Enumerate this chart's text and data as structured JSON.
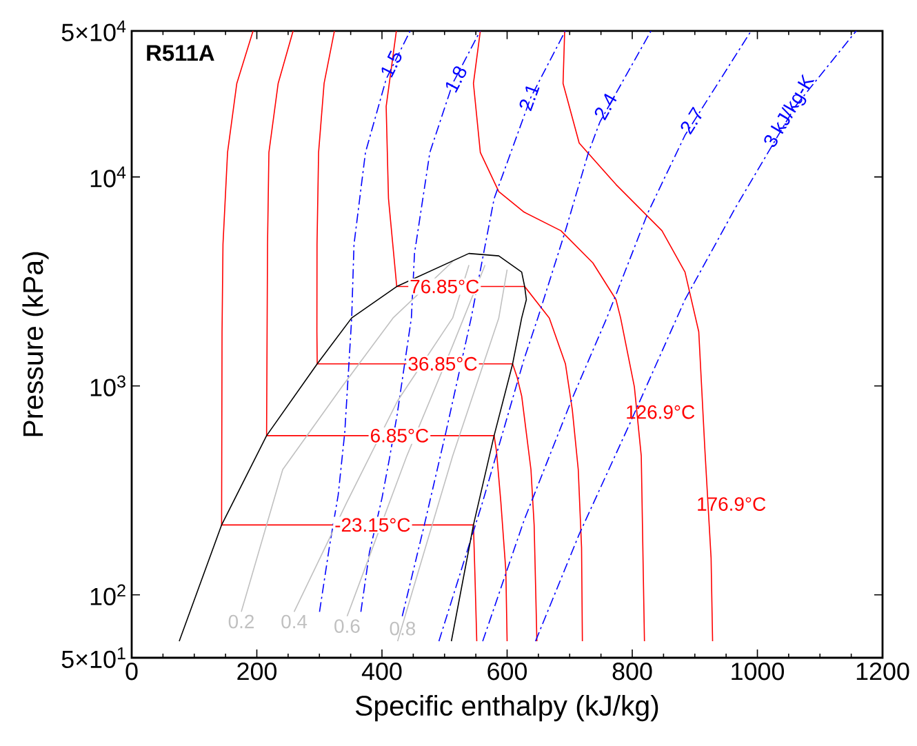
{
  "chart_data": {
    "type": "line",
    "title": "R511A",
    "xlabel": "Specific enthalpy (kJ/kg)",
    "ylabel": "Pressure (kPa)",
    "xlim": [
      0,
      1200
    ],
    "xticks": [
      0,
      200,
      400,
      600,
      800,
      1000,
      1200
    ],
    "ylim": [
      50,
      50000
    ],
    "yticks": [
      {
        "value": 50,
        "label": "5×10$^{1}$"
      },
      {
        "value": 100,
        "label": "10$^{2}$"
      },
      {
        "value": 1000,
        "label": "10$^{3}$"
      },
      {
        "value": 10000,
        "label": "10$^{4}$"
      },
      {
        "value": 50000,
        "label": "5×10$^{4}$"
      }
    ],
    "log": "y",
    "series": [
      {
        "color": "#ff0000",
        "x": [
          194,
          168,
          153.2,
          145.9,
          144.4,
          143.7,
          546.2,
          548.4,
          551.5
        ],
        "values": [
          50000,
          28030,
          13090,
          4753,
          1815,
          216,
          216,
          130,
          60
        ]
      },
      {
        "color": "#ff0000",
        "x": [
          258,
          234.1,
          219.3,
          217.1,
          216.4,
          215.6,
          579.2,
          583,
          590,
          598,
          600
        ],
        "values": [
          50000,
          28030,
          13090,
          4753,
          1815,
          578,
          578,
          487,
          278,
          130,
          60
        ]
      },
      {
        "color": "#ff0000",
        "x": [
          324,
          307.5,
          298.7,
          296.2,
          296,
          296.5,
          608.8,
          616,
          623.3,
          638.1,
          643.2,
          647.6
        ],
        "values": [
          50000,
          28030,
          13090,
          4753,
          1815,
          1275,
          1275,
          1100,
          894,
          398,
          216,
          60
        ]
      },
      {
        "color": "#ff0000",
        "x": [
          423,
          406.7,
          410.4,
          423.6,
          628,
          667.4,
          693.2,
          704.2,
          713.7,
          719,
          720.3
        ],
        "values": [
          50000,
          21730,
          7890,
          2990,
          2990,
          2114,
          1275,
          768,
          398,
          168,
          60
        ]
      },
      {
        "color": "#ff0000",
        "x": [
          557.2,
          546.2,
          557.2,
          586.7,
          627,
          686,
          737,
          774,
          781.4,
          803.4,
          814.4,
          819.5
        ],
        "values": [
          50000,
          28030,
          13090,
          8510,
          6790,
          5530,
          3880,
          2588,
          2114,
          989,
          462,
          60
        ]
      },
      {
        "color": "#ff0000",
        "x": [
          692,
          689.4,
          715.2,
          774,
          847.5,
          884.3,
          906.3,
          916,
          926,
          928.4
        ],
        "values": [
          50000,
          28030,
          14530,
          9200,
          5530,
          3506,
          1815,
          500,
          150,
          60
        ]
      },
      {
        "color": "#0000ff",
        "line_style": "dashdot",
        "x": [
          300.2,
          316,
          330,
          340.5,
          351.6,
          355.3,
          373.6,
          406.7,
          445
        ],
        "values": [
          83,
          170,
          300,
          597,
          2114,
          4753,
          13090,
          29380,
          50000
        ]
      },
      {
        "color": "#0000ff",
        "line_style": "dashdot",
        "x": [
          366.3,
          380,
          400,
          412,
          424,
          447,
          452,
          476.5,
          513.1,
          557
        ],
        "values": [
          83,
          160,
          290,
          450,
          720,
          2114,
          4305,
          13090,
          28030,
          50000
        ]
      },
      {
        "color": "#0000ff",
        "line_style": "dashdot",
        "x": [
          432.4,
          467.7,
          502,
          542.6,
          579.3,
          638,
          693
        ],
        "values": [
          79,
          216,
          597,
          2114,
          7890,
          24070,
          50000
        ]
      },
      {
        "color": "#0000ff",
        "line_style": "dashdot",
        "x": [
          491,
          561,
          627,
          649.1,
          693.2,
          730,
          748.3,
          830
        ],
        "values": [
          60,
          279,
          1340,
          2114,
          5530,
          13090,
          18320,
          50000
        ]
      },
      {
        "color": "#0000ff",
        "line_style": "dashdot",
        "x": [
          561,
          627,
          704.2,
          759.3,
          774,
          825.4,
          884.3,
          990
        ],
        "values": [
          60,
          227,
          873,
          2114,
          2731,
          6780,
          15830,
          50000
        ]
      },
      {
        "color": "#0000ff",
        "line_style": "dashdot",
        "x": [
          645.4,
          715.2,
          796,
          884.3,
          965,
          1060.6,
          1158
        ],
        "values": [
          60,
          195,
          659,
          2588,
          7130,
          21760,
          50000
        ]
      },
      {
        "color": "#c0c0c0",
        "x": [
          175.2,
          241.4,
          336.8,
          417.7,
          513
        ],
        "values": [
          83,
          398,
          997,
          2114,
          3940
        ]
      },
      {
        "color": "#c0c0c0",
        "x": [
          259.6,
          344.3,
          425,
          513,
          539
        ],
        "values": [
          83,
          279,
          849,
          2114,
          3787
        ]
      },
      {
        "color": "#c0c0c0",
        "x": [
          344.3,
          439.7,
          513,
          564.7
        ],
        "values": [
          79,
          462,
          1560,
          3787
        ]
      },
      {
        "color": "#c0c0c0",
        "x": [
          425,
          513,
          586.7,
          600
        ],
        "values": [
          60,
          462,
          2114,
          3600
        ]
      },
      {
        "color": "#000000",
        "x": [
          76,
          143.7,
          215.6,
          296.5,
          351.6,
          423.6,
          538.9,
          586.7,
          623.3,
          628,
          630.8,
          623.3,
          608.8,
          579.2,
          546.2,
          510.9
        ],
        "values": [
          60,
          216,
          578,
          1275,
          2114,
          2990,
          4302,
          4190,
          3506,
          2990,
          2588,
          2114,
          1275,
          578,
          216,
          60
        ]
      }
    ],
    "annotations": [
      {
        "text": "-23.15°C",
        "x": 385,
        "y": 216
      },
      {
        "text": "6.85°C",
        "x": 428,
        "y": 578
      },
      {
        "text": "36.85°C",
        "x": 497,
        "y": 1275
      },
      {
        "text": "76.85°C",
        "x": 500,
        "y": 2990
      },
      {
        "text": "126.9°C",
        "x": 808.5,
        "y": 749
      },
      {
        "text": "176.9°C",
        "x": 922,
        "y": 272
      },
      {
        "text": "1.5",
        "x": 415,
        "y": 34700
      },
      {
        "text": "1.8",
        "x": 518,
        "y": 29380
      },
      {
        "text": "2.1",
        "x": 635,
        "y": 24070
      },
      {
        "text": "2.4",
        "x": 757,
        "y": 21770
      },
      {
        "text": "2.7",
        "x": 895,
        "y": 18600
      },
      {
        "text": "3 kJ/kg-K",
        "x": 1052,
        "y": 20500
      },
      {
        "text": "0.2",
        "x": 175.2,
        "y": 83
      },
      {
        "text": "0.4",
        "x": 259.6,
        "y": 83
      },
      {
        "text": "0.6",
        "x": 344.3,
        "y": 79
      },
      {
        "text": "0.8",
        "x": 431,
        "y": 69
      }
    ]
  }
}
